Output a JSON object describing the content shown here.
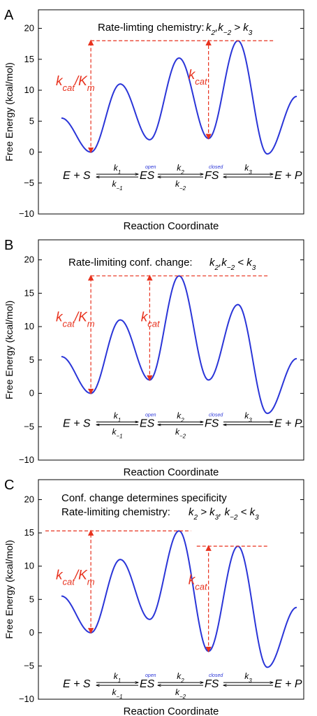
{
  "colors": {
    "curve": "#2a35d8",
    "annotation": "#e8321e",
    "axis": "#000000"
  },
  "chart_data": [
    {
      "panel": "A",
      "type": "line",
      "title": "Rate-limting chemistry:",
      "condition": "k2,k−2 > k3",
      "ylabel": "Free Energy (kcal/mol)",
      "xlabel": "Reaction Coordinate",
      "ylim": [
        -10,
        23
      ],
      "yticks": [
        -10,
        -5,
        0,
        5,
        10,
        15,
        20
      ],
      "series": [
        {
          "x": [
            0,
            1,
            2,
            3,
            4,
            5,
            6,
            7,
            8
          ],
          "y": [
            5.5,
            0,
            11,
            2,
            15.2,
            2.2,
            18,
            -0.3,
            9
          ]
        }
      ],
      "rate_labels": {
        "left": "kcat/Km",
        "right": "kcat"
      },
      "scheme": {
        "states": [
          "E + S",
          "ES",
          "FS",
          "E + P"
        ],
        "forward": [
          "k1",
          "k2",
          "k3"
        ],
        "reverse": [
          "k−1",
          "k−2"
        ],
        "tags": [
          "open",
          "closed"
        ]
      }
    },
    {
      "panel": "B",
      "type": "line",
      "title": "Rate-limiting conf. change:",
      "condition": "k2,k−2 < k3",
      "ylabel": "Free Energy (kcal/mol)",
      "xlabel": "Reaction Coordinate",
      "ylim": [
        -10,
        23
      ],
      "yticks": [
        -10,
        -5,
        0,
        5,
        10,
        15,
        20
      ],
      "series": [
        {
          "x": [
            0,
            1,
            2,
            3,
            4,
            5,
            6,
            7,
            8
          ],
          "y": [
            5.5,
            0,
            11,
            2,
            17.6,
            2,
            13.3,
            -3,
            5.2
          ]
        }
      ],
      "rate_labels": {
        "left": "kcat/Km",
        "right": "kcat"
      },
      "scheme": {
        "states": [
          "E + S",
          "ES",
          "FS",
          "E + P"
        ],
        "forward": [
          "k1",
          "k2",
          "k3"
        ],
        "reverse": [
          "k−1",
          "k−2"
        ],
        "tags": [
          "open",
          "closed"
        ]
      }
    },
    {
      "panel": "C",
      "type": "line",
      "title": "Conf. change determines specificity",
      "title2": "Rate-limiting chemistry:",
      "condition": "k2 > k3, k−2 < k3",
      "ylabel": "Free Energy (kcal/mol)",
      "xlabel": "Reaction Coordinate",
      "ylim": [
        -10,
        23
      ],
      "yticks": [
        -10,
        -5,
        0,
        5,
        10,
        15,
        20
      ],
      "series": [
        {
          "x": [
            0,
            1,
            2,
            3,
            4,
            5,
            6,
            7,
            8
          ],
          "y": [
            5.5,
            0,
            11,
            2,
            15.3,
            -2.8,
            13,
            -5.2,
            3.8
          ]
        }
      ],
      "rate_labels": {
        "left": "kcat/Km",
        "right": "kcat"
      },
      "scheme": {
        "states": [
          "E + S",
          "ES",
          "FS",
          "E + P"
        ],
        "forward": [
          "k1",
          "k2",
          "k3"
        ],
        "reverse": [
          "k−1",
          "k−2"
        ],
        "tags": [
          "open",
          "closed"
        ]
      }
    }
  ]
}
